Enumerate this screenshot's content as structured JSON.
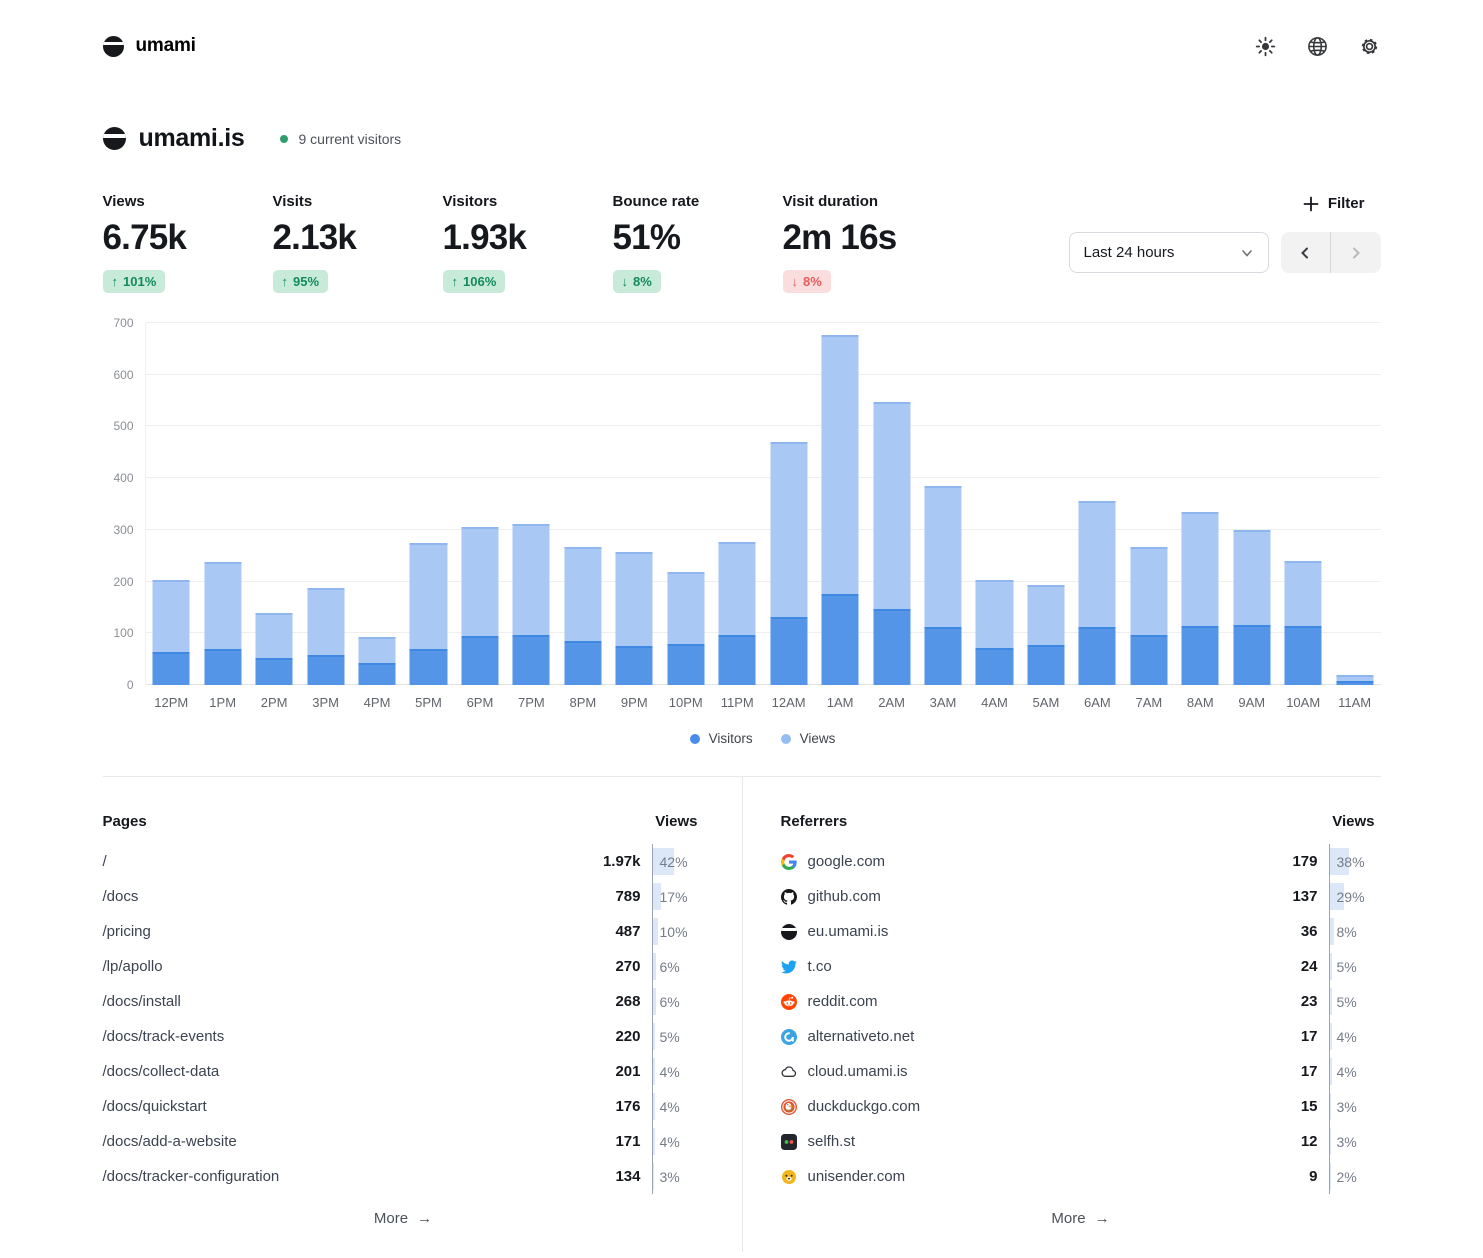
{
  "header": {
    "brand": "umami",
    "icons": [
      {
        "name": "theme-toggle-icon",
        "glyph": "sun"
      },
      {
        "name": "language-icon",
        "glyph": "globe"
      },
      {
        "name": "settings-icon",
        "glyph": "gear"
      }
    ]
  },
  "site": {
    "name": "umami.is",
    "current_visitors": "9 current visitors"
  },
  "metrics": [
    {
      "label": "Views",
      "value": "6.75k",
      "change": "101%",
      "direction": "up",
      "tone": "positive"
    },
    {
      "label": "Visits",
      "value": "2.13k",
      "change": "95%",
      "direction": "up",
      "tone": "positive"
    },
    {
      "label": "Visitors",
      "value": "1.93k",
      "change": "106%",
      "direction": "up",
      "tone": "positive"
    },
    {
      "label": "Bounce rate",
      "value": "51%",
      "change": "8%",
      "direction": "down",
      "tone": "positive"
    },
    {
      "label": "Visit duration",
      "value": "2m 16s",
      "change": "8%",
      "direction": "down",
      "tone": "negative"
    }
  ],
  "toolbar": {
    "filter_label": "Filter",
    "date_range": "Last 24 hours"
  },
  "chart_data": {
    "type": "bar",
    "stacking": "overlay",
    "categories": [
      "12PM",
      "1PM",
      "2PM",
      "3PM",
      "4PM",
      "5PM",
      "6PM",
      "7PM",
      "8PM",
      "9PM",
      "10PM",
      "11PM",
      "12AM",
      "1AM",
      "2AM",
      "3AM",
      "4AM",
      "5AM",
      "6AM",
      "7AM",
      "8AM",
      "9AM",
      "10AM",
      "11AM"
    ],
    "series": [
      {
        "name": "Views",
        "color": "#a9c8f3",
        "values": [
          204,
          238,
          139,
          188,
          93,
          275,
          306,
          311,
          267,
          257,
          219,
          277,
          470,
          676,
          548,
          384,
          203,
          194,
          356,
          266,
          335,
          300,
          240,
          19
        ]
      },
      {
        "name": "Visitors",
        "color": "#5495e8",
        "values": [
          64,
          70,
          52,
          58,
          43,
          70,
          95,
          97,
          85,
          75,
          79,
          97,
          131,
          176,
          147,
          113,
          72,
          78,
          112,
          97,
          114,
          116,
          114,
          8
        ]
      }
    ],
    "legend": [
      "Visitors",
      "Views"
    ],
    "legend_colors": {
      "Visitors": "#4a8cea",
      "Views": "#94bef1"
    },
    "ylim": [
      0,
      700
    ],
    "yticks": [
      0,
      100,
      200,
      300,
      400,
      500,
      600,
      700
    ],
    "grid": true,
    "legend_position": "bottom"
  },
  "tables": {
    "pages": {
      "title": "Pages",
      "views_label": "Views",
      "more_label": "More",
      "rows": [
        {
          "label": "/",
          "views": "1.97k",
          "percent": 42,
          "percent_label": "42%"
        },
        {
          "label": "/docs",
          "views": "789",
          "percent": 17,
          "percent_label": "17%"
        },
        {
          "label": "/pricing",
          "views": "487",
          "percent": 10,
          "percent_label": "10%"
        },
        {
          "label": "/lp/apollo",
          "views": "270",
          "percent": 6,
          "percent_label": "6%"
        },
        {
          "label": "/docs/install",
          "views": "268",
          "percent": 6,
          "percent_label": "6%"
        },
        {
          "label": "/docs/track-events",
          "views": "220",
          "percent": 5,
          "percent_label": "5%"
        },
        {
          "label": "/docs/collect-data",
          "views": "201",
          "percent": 4,
          "percent_label": "4%"
        },
        {
          "label": "/docs/quickstart",
          "views": "176",
          "percent": 4,
          "percent_label": "4%"
        },
        {
          "label": "/docs/add-a-website",
          "views": "171",
          "percent": 4,
          "percent_label": "4%"
        },
        {
          "label": "/docs/tracker-configuration",
          "views": "134",
          "percent": 3,
          "percent_label": "3%"
        }
      ]
    },
    "referrers": {
      "title": "Referrers",
      "views_label": "Views",
      "more_label": "More",
      "rows": [
        {
          "label": "google.com",
          "icon": "google-favicon",
          "views": "179",
          "percent": 38,
          "percent_label": "38%"
        },
        {
          "label": "github.com",
          "icon": "github-favicon",
          "views": "137",
          "percent": 29,
          "percent_label": "29%"
        },
        {
          "label": "eu.umami.is",
          "icon": "umami-favicon",
          "views": "36",
          "percent": 8,
          "percent_label": "8%"
        },
        {
          "label": "t.co",
          "icon": "twitter-favicon",
          "views": "24",
          "percent": 5,
          "percent_label": "5%"
        },
        {
          "label": "reddit.com",
          "icon": "reddit-favicon",
          "views": "23",
          "percent": 5,
          "percent_label": "5%"
        },
        {
          "label": "alternativeto.net",
          "icon": "alternativeto-favicon",
          "views": "17",
          "percent": 4,
          "percent_label": "4%"
        },
        {
          "label": "cloud.umami.is",
          "icon": "cloud-favicon",
          "views": "17",
          "percent": 4,
          "percent_label": "4%"
        },
        {
          "label": "duckduckgo.com",
          "icon": "duckduckgo-favicon",
          "views": "15",
          "percent": 3,
          "percent_label": "3%"
        },
        {
          "label": "selfh.st",
          "icon": "selfhst-favicon",
          "views": "12",
          "percent": 3,
          "percent_label": "3%"
        },
        {
          "label": "unisender.com",
          "icon": "unisender-favicon",
          "views": "9",
          "percent": 2,
          "percent_label": "2%"
        }
      ]
    }
  },
  "colors": {
    "bar_views": "#a9c8f3",
    "bar_visitors": "#5495e8",
    "badge_positive_bg": "#c7ebd8",
    "badge_positive_text": "#148a5c",
    "badge_negative_bg": "#fadddd",
    "badge_negative_text": "#e45d5d",
    "live_dot": "#2f9e6e",
    "percent_fill": "#dce8f8"
  }
}
